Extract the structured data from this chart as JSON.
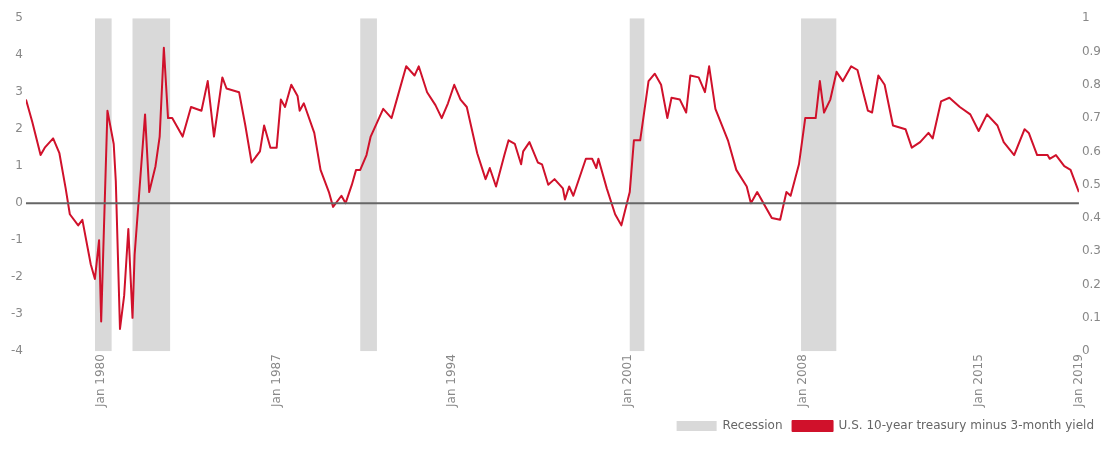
{
  "chart_data": {
    "type": "line",
    "xlim": [
      "1977-01",
      "2019-01"
    ],
    "xticks": [
      {
        "value": "1980-01",
        "label": "Jan 1980"
      },
      {
        "value": "1987-01",
        "label": "Jan 1987"
      },
      {
        "value": "1994-01",
        "label": "Jan 1994"
      },
      {
        "value": "2001-01",
        "label": "Jan 2001"
      },
      {
        "value": "2008-01",
        "label": "Jan 2008"
      },
      {
        "value": "2015-01",
        "label": "Jan 2015"
      },
      {
        "value": "2019-01",
        "label": "Jan 2019"
      }
    ],
    "ylim": [
      -4,
      5
    ],
    "yticks": [
      -4,
      -3,
      -2,
      -1,
      0,
      1,
      2,
      3,
      4,
      5
    ],
    "y2lim": [
      0,
      1
    ],
    "y2ticks": [
      0,
      0.1,
      0.2,
      0.3,
      0.4,
      0.5,
      0.6,
      0.7,
      0.8,
      0.9,
      1
    ],
    "grid": false,
    "legend": "bottom right",
    "ref_lines": [
      {
        "axis": "y",
        "value": 0,
        "color": "#666666"
      }
    ],
    "series": [
      {
        "name": "Recession",
        "type": "area",
        "axis": "y2",
        "color": "#d9d9d9",
        "x": [
          "1979-10",
          "1979-10",
          "1980-06",
          "1980-06",
          "1981-04",
          "1981-04",
          "1982-10",
          "1982-10",
          "1990-05",
          "1990-05",
          "1991-01",
          "1991-01",
          "2001-02",
          "2001-02",
          "2001-09",
          "2001-09",
          "2007-12",
          "2007-12",
          "2009-05",
          "2009-05"
        ],
        "values": [
          0,
          1,
          1,
          0,
          0,
          1,
          1,
          0,
          0,
          1,
          1,
          0,
          0,
          1,
          1,
          0,
          0,
          1,
          1,
          0
        ]
      },
      {
        "name": "U.S. 10-year treasury minus 3-month yield",
        "type": "line",
        "color": "#d0112b",
        "x": [
          "1977-01",
          "1977-04",
          "1977-08",
          "1977-10",
          "1978-02",
          "1978-05",
          "1978-08",
          "1978-10",
          "1979-02",
          "1979-04",
          "1979-08",
          "1979-10",
          "1979-12",
          "1980-01",
          "1980-04",
          "1980-07",
          "1980-08",
          "1980-10",
          "1980-12",
          "1981-02",
          "1981-04",
          "1981-05",
          "1981-10",
          "1981-12",
          "1982-03",
          "1982-05",
          "1982-07",
          "1982-09",
          "1982-11",
          "1983-04",
          "1983-08",
          "1984-01",
          "1984-04",
          "1984-07",
          "1984-11",
          "1985-01",
          "1985-07",
          "1985-10",
          "1986-01",
          "1986-05",
          "1986-07",
          "1986-10",
          "1987-01",
          "1987-03",
          "1987-05",
          "1987-08",
          "1987-11",
          "1987-12",
          "1988-02",
          "1988-07",
          "1988-10",
          "1989-02",
          "1989-04",
          "1989-08",
          "1989-10",
          "1990-01",
          "1990-03",
          "1990-05",
          "1990-08",
          "1990-10",
          "1991-04",
          "1991-08",
          "1991-11",
          "1992-03",
          "1992-07",
          "1992-09",
          "1993-01",
          "1993-05",
          "1993-08",
          "1993-11",
          "1994-02",
          "1994-05",
          "1994-08",
          "1995-01",
          "1995-05",
          "1995-07",
          "1995-10",
          "1996-02",
          "1996-04",
          "1996-07",
          "1996-10",
          "1996-11",
          "1997-02",
          "1997-06",
          "1997-08",
          "1997-11",
          "1998-02",
          "1998-06",
          "1998-07",
          "1998-09",
          "1998-11",
          "1999-05",
          "1999-08",
          "1999-10",
          "1999-11",
          "2000-03",
          "2000-07",
          "2000-10",
          "2001-02",
          "2001-04",
          "2001-07",
          "2001-11",
          "2002-02",
          "2002-05",
          "2002-08",
          "2002-10",
          "2003-02",
          "2003-05",
          "2003-07",
          "2003-11",
          "2004-02",
          "2004-04",
          "2004-07",
          "2005-01",
          "2005-05",
          "2005-10",
          "2005-12",
          "2006-03",
          "2006-10",
          "2007-02",
          "2007-05",
          "2007-07",
          "2007-11",
          "2008-02",
          "2008-07",
          "2008-09",
          "2008-11",
          "2009-02",
          "2009-05",
          "2009-08",
          "2009-12",
          "2010-03",
          "2010-08",
          "2010-10",
          "2011-01",
          "2011-04",
          "2011-08",
          "2012-02",
          "2012-05",
          "2012-09",
          "2013-01",
          "2013-03",
          "2013-07",
          "2013-11",
          "2014-04",
          "2014-09",
          "2015-01",
          "2015-05",
          "2015-10",
          "2016-01",
          "2016-06",
          "2016-11",
          "2017-01",
          "2017-05",
          "2017-10",
          "2017-11",
          "2018-02",
          "2018-06",
          "2018-09",
          "2019-01"
        ],
        "values": [
          2.8,
          2.2,
          1.3,
          1.5,
          1.75,
          1.35,
          0.4,
          -0.3,
          -0.6,
          -0.45,
          -1.65,
          -2.05,
          -1.0,
          -3.2,
          2.5,
          1.6,
          0.6,
          -3.4,
          -2.5,
          -0.7,
          -3.1,
          -1.4,
          2.4,
          0.3,
          1.0,
          1.8,
          4.2,
          2.3,
          2.3,
          1.8,
          2.6,
          2.5,
          3.3,
          1.8,
          3.4,
          3.1,
          3.0,
          2.1,
          1.1,
          1.4,
          2.1,
          1.5,
          1.5,
          2.8,
          2.6,
          3.2,
          2.9,
          2.5,
          2.7,
          1.9,
          0.9,
          0.3,
          -0.1,
          0.2,
          0.0,
          0.5,
          0.9,
          0.9,
          1.3,
          1.8,
          2.55,
          2.3,
          2.9,
          3.7,
          3.45,
          3.7,
          3.0,
          2.65,
          2.3,
          2.7,
          3.2,
          2.8,
          2.6,
          1.35,
          0.65,
          0.95,
          0.45,
          1.3,
          1.7,
          1.6,
          1.05,
          1.4,
          1.65,
          1.1,
          1.05,
          0.5,
          0.65,
          0.4,
          0.1,
          0.45,
          0.2,
          1.2,
          1.2,
          0.95,
          1.2,
          0.4,
          -0.3,
          -0.6,
          0.3,
          1.7,
          1.7,
          3.3,
          3.5,
          3.2,
          2.3,
          2.85,
          2.8,
          2.45,
          3.45,
          3.4,
          3.0,
          3.7,
          2.55,
          1.7,
          0.9,
          0.45,
          0.0,
          0.3,
          -0.4,
          -0.45,
          0.3,
          0.2,
          1.05,
          2.3,
          2.3,
          3.3,
          2.45,
          2.8,
          3.55,
          3.3,
          3.7,
          3.6,
          2.5,
          2.45,
          3.45,
          3.2,
          2.1,
          2.0,
          1.5,
          1.65,
          1.9,
          1.75,
          2.75,
          2.85,
          2.6,
          2.4,
          1.95,
          2.4,
          2.1,
          1.65,
          1.3,
          2.0,
          1.9,
          1.3,
          1.3,
          1.2,
          1.3,
          1.0,
          0.9,
          0.3
        ]
      }
    ]
  }
}
